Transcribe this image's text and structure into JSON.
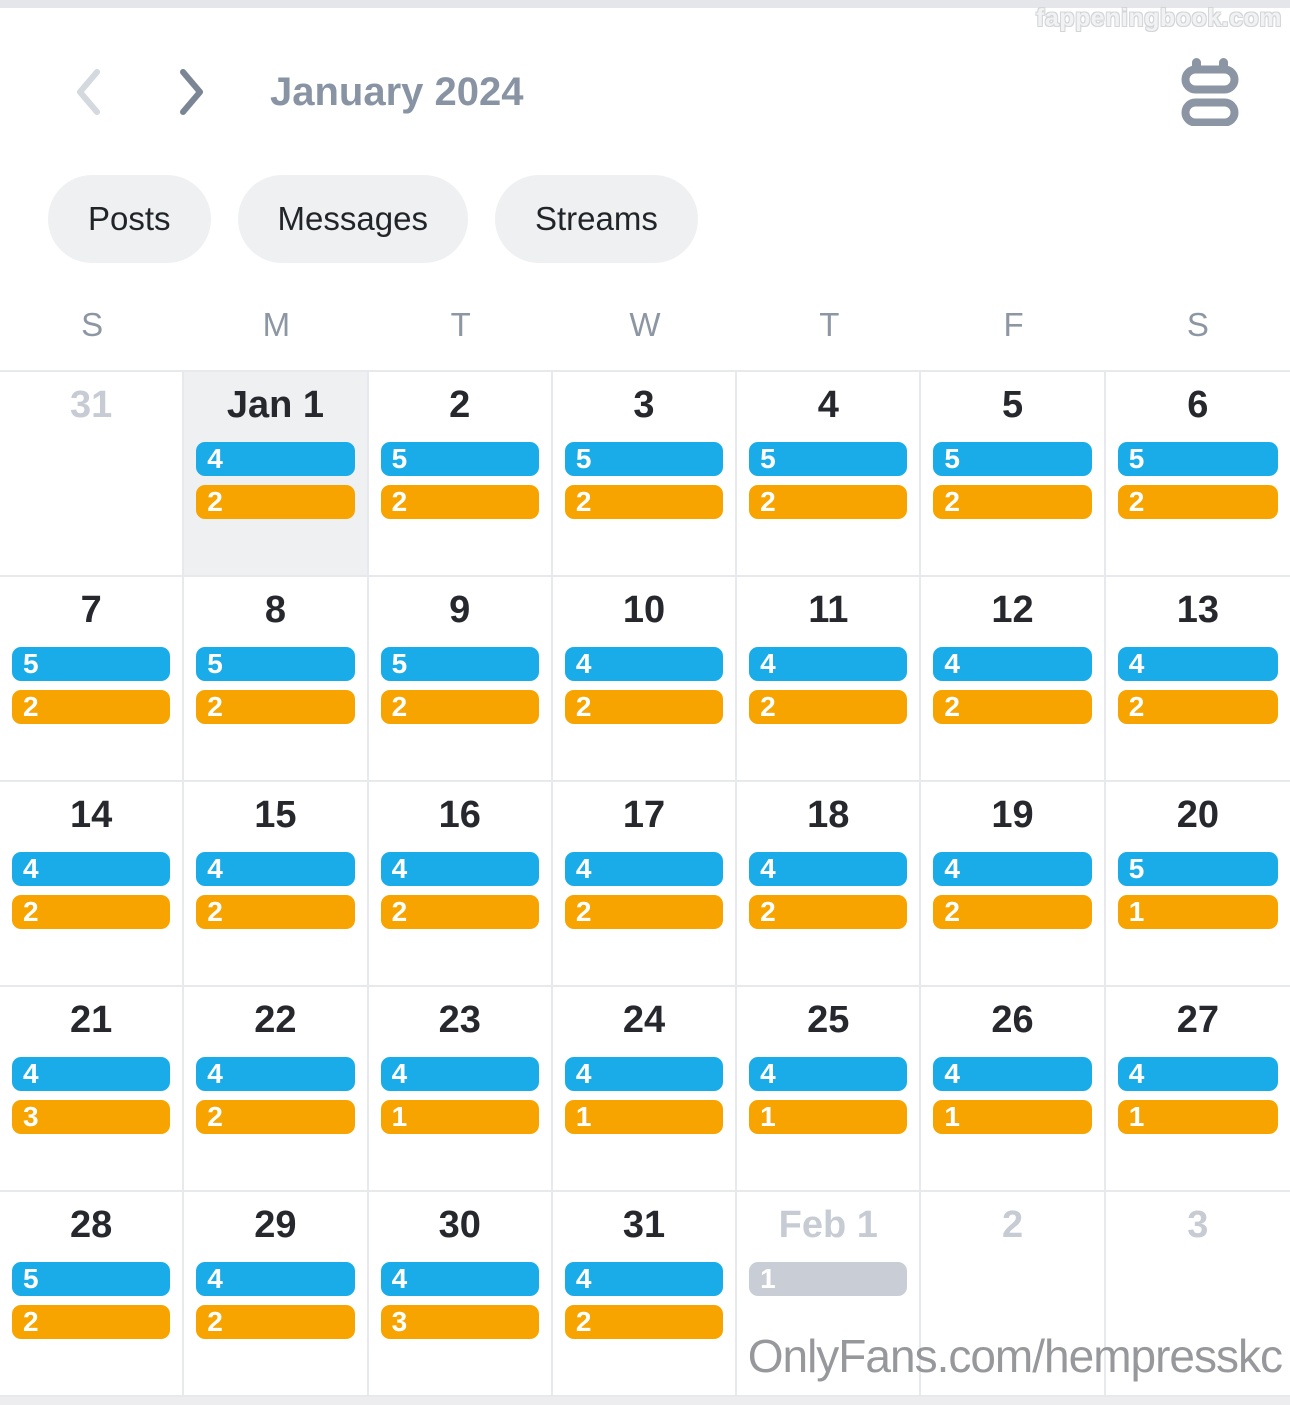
{
  "header": {
    "title": "January 2024",
    "icons": {
      "prev": "chevron-left",
      "next": "chevron-right",
      "view_toggle": "calendar"
    }
  },
  "filters": [
    {
      "label": "Posts"
    },
    {
      "label": "Messages"
    },
    {
      "label": "Streams"
    }
  ],
  "weekday_headers": [
    "S",
    "M",
    "T",
    "W",
    "T",
    "F",
    "S"
  ],
  "badge_colors": {
    "posts": "#1aace9",
    "messages": "#f7a400",
    "muted": "#c9ced6"
  },
  "weeks": [
    [
      {
        "label": "31",
        "muted": true,
        "badges": []
      },
      {
        "label": "Jan 1",
        "highlight": true,
        "badges": [
          {
            "value": "4",
            "type": "posts"
          },
          {
            "value": "2",
            "type": "messages"
          }
        ]
      },
      {
        "label": "2",
        "badges": [
          {
            "value": "5",
            "type": "posts"
          },
          {
            "value": "2",
            "type": "messages"
          }
        ]
      },
      {
        "label": "3",
        "badges": [
          {
            "value": "5",
            "type": "posts"
          },
          {
            "value": "2",
            "type": "messages"
          }
        ]
      },
      {
        "label": "4",
        "badges": [
          {
            "value": "5",
            "type": "posts"
          },
          {
            "value": "2",
            "type": "messages"
          }
        ]
      },
      {
        "label": "5",
        "badges": [
          {
            "value": "5",
            "type": "posts"
          },
          {
            "value": "2",
            "type": "messages"
          }
        ]
      },
      {
        "label": "6",
        "badges": [
          {
            "value": "5",
            "type": "posts"
          },
          {
            "value": "2",
            "type": "messages"
          }
        ]
      }
    ],
    [
      {
        "label": "7",
        "badges": [
          {
            "value": "5",
            "type": "posts"
          },
          {
            "value": "2",
            "type": "messages"
          }
        ]
      },
      {
        "label": "8",
        "badges": [
          {
            "value": "5",
            "type": "posts"
          },
          {
            "value": "2",
            "type": "messages"
          }
        ]
      },
      {
        "label": "9",
        "badges": [
          {
            "value": "5",
            "type": "posts"
          },
          {
            "value": "2",
            "type": "messages"
          }
        ]
      },
      {
        "label": "10",
        "badges": [
          {
            "value": "4",
            "type": "posts"
          },
          {
            "value": "2",
            "type": "messages"
          }
        ]
      },
      {
        "label": "11",
        "badges": [
          {
            "value": "4",
            "type": "posts"
          },
          {
            "value": "2",
            "type": "messages"
          }
        ]
      },
      {
        "label": "12",
        "badges": [
          {
            "value": "4",
            "type": "posts"
          },
          {
            "value": "2",
            "type": "messages"
          }
        ]
      },
      {
        "label": "13",
        "badges": [
          {
            "value": "4",
            "type": "posts"
          },
          {
            "value": "2",
            "type": "messages"
          }
        ]
      }
    ],
    [
      {
        "label": "14",
        "badges": [
          {
            "value": "4",
            "type": "posts"
          },
          {
            "value": "2",
            "type": "messages"
          }
        ]
      },
      {
        "label": "15",
        "badges": [
          {
            "value": "4",
            "type": "posts"
          },
          {
            "value": "2",
            "type": "messages"
          }
        ]
      },
      {
        "label": "16",
        "badges": [
          {
            "value": "4",
            "type": "posts"
          },
          {
            "value": "2",
            "type": "messages"
          }
        ]
      },
      {
        "label": "17",
        "badges": [
          {
            "value": "4",
            "type": "posts"
          },
          {
            "value": "2",
            "type": "messages"
          }
        ]
      },
      {
        "label": "18",
        "badges": [
          {
            "value": "4",
            "type": "posts"
          },
          {
            "value": "2",
            "type": "messages"
          }
        ]
      },
      {
        "label": "19",
        "badges": [
          {
            "value": "4",
            "type": "posts"
          },
          {
            "value": "2",
            "type": "messages"
          }
        ]
      },
      {
        "label": "20",
        "badges": [
          {
            "value": "5",
            "type": "posts"
          },
          {
            "value": "1",
            "type": "messages"
          }
        ]
      }
    ],
    [
      {
        "label": "21",
        "badges": [
          {
            "value": "4",
            "type": "posts"
          },
          {
            "value": "3",
            "type": "messages"
          }
        ]
      },
      {
        "label": "22",
        "badges": [
          {
            "value": "4",
            "type": "posts"
          },
          {
            "value": "2",
            "type": "messages"
          }
        ]
      },
      {
        "label": "23",
        "badges": [
          {
            "value": "4",
            "type": "posts"
          },
          {
            "value": "1",
            "type": "messages"
          }
        ]
      },
      {
        "label": "24",
        "badges": [
          {
            "value": "4",
            "type": "posts"
          },
          {
            "value": "1",
            "type": "messages"
          }
        ]
      },
      {
        "label": "25",
        "badges": [
          {
            "value": "4",
            "type": "posts"
          },
          {
            "value": "1",
            "type": "messages"
          }
        ]
      },
      {
        "label": "26",
        "badges": [
          {
            "value": "4",
            "type": "posts"
          },
          {
            "value": "1",
            "type": "messages"
          }
        ]
      },
      {
        "label": "27",
        "badges": [
          {
            "value": "4",
            "type": "posts"
          },
          {
            "value": "1",
            "type": "messages"
          }
        ]
      }
    ],
    [
      {
        "label": "28",
        "badges": [
          {
            "value": "5",
            "type": "posts"
          },
          {
            "value": "2",
            "type": "messages"
          }
        ]
      },
      {
        "label": "29",
        "badges": [
          {
            "value": "4",
            "type": "posts"
          },
          {
            "value": "2",
            "type": "messages"
          }
        ]
      },
      {
        "label": "30",
        "badges": [
          {
            "value": "4",
            "type": "posts"
          },
          {
            "value": "3",
            "type": "messages"
          }
        ]
      },
      {
        "label": "31",
        "badges": [
          {
            "value": "4",
            "type": "posts"
          },
          {
            "value": "2",
            "type": "messages"
          }
        ]
      },
      {
        "label": "Feb 1",
        "muted": true,
        "badges": [
          {
            "value": "1",
            "type": "muted"
          }
        ]
      },
      {
        "label": "2",
        "muted": true,
        "badges": []
      },
      {
        "label": "3",
        "muted": true,
        "badges": []
      }
    ]
  ],
  "watermarks": {
    "top": "fappeningbook.com",
    "bottom": "OnlyFans.com/hempresskc"
  }
}
